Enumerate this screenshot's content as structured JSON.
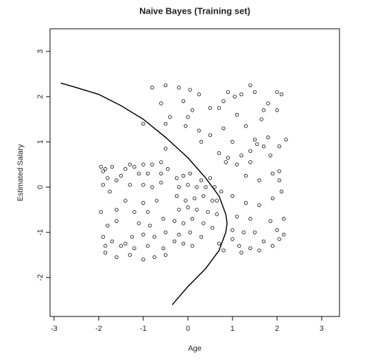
{
  "chart_data": {
    "type": "scatter",
    "title": "Naive Bayes (Training set)",
    "x_label": "Age",
    "y_label": "Estimated Salary",
    "xlim": [
      -3.09,
      3.4
    ],
    "ylim": [
      -2.86,
      3.5
    ],
    "xticks": [
      -3,
      -2,
      -1,
      0,
      1,
      2,
      3
    ],
    "yticks": [
      -2,
      -1,
      0,
      1,
      2,
      3
    ],
    "color": "#000000",
    "points": {
      "x": [
        -0.8,
        -0.5,
        -0.2,
        0.05,
        0.25,
        0.9,
        1.05,
        1.4,
        1.5,
        1.2,
        2.0,
        2.1,
        0.8,
        1.8,
        0.5,
        0.7,
        -0.6,
        -0.1,
        0.1,
        1.7,
        2.0,
        1.65,
        1.1,
        0.0,
        -0.4,
        -1.0,
        -0.5,
        0.8,
        1.3,
        -0.05,
        0.25,
        0.5,
        1.8,
        2.2,
        1.5,
        1.55,
        1.0,
        0.3,
        -0.5,
        1.7,
        2.05,
        0.7,
        1.2,
        1.4,
        0.9,
        1.85,
        1.1,
        1.4,
        0.85,
        2.05,
        1.9,
        1.3,
        2.05,
        1.6,
        -1.95,
        -1.85,
        -1.7,
        -1.9,
        -1.4,
        -1.3,
        -1.2,
        -1.0,
        -0.8,
        -0.6,
        -1.9,
        -1.8,
        -1.6,
        -1.5,
        -1.1,
        -0.9,
        -0.6,
        -0.45,
        -1.75,
        -1.3,
        -1.0,
        -0.8,
        -0.6,
        -1.4,
        -1.6,
        -1.95,
        -1.0,
        -0.7,
        -0.9,
        -1.2,
        -1.6,
        -1.8,
        -1.1,
        -0.85,
        -0.55,
        -1.9,
        -1.7,
        -1.25,
        -1.0,
        -0.75,
        -0.5,
        -1.85,
        -1.5,
        -1.2,
        -0.9,
        -0.55,
        -1.85,
        -1.6,
        -1.3,
        -1.0,
        -0.75,
        -0.5,
        -1.4,
        -0.3,
        -0.25,
        -0.1,
        0.05,
        0.3,
        0.5,
        -0.2,
        0.0,
        0.2,
        0.4,
        0.6,
        -0.25,
        -0.05,
        0.15,
        0.35,
        0.55,
        -0.2,
        0.0,
        0.2,
        0.45,
        0.65,
        -0.3,
        -0.1,
        0.1,
        0.35,
        0.55,
        -0.2,
        0.05,
        0.3,
        0.7,
        0.8,
        0.1,
        -0.1,
        0.65,
        0.75,
        1.0,
        1.3,
        1.6,
        1.9,
        2.1,
        1.1,
        1.4,
        1.85,
        2.15,
        1.0,
        1.25,
        1.5,
        2.0,
        2.15,
        1.15,
        1.4,
        1.7,
        1.9,
        2.05,
        1.0,
        1.2,
        1.6
      ],
      "y": [
        2.2,
        2.25,
        2.2,
        2.15,
        2.05,
        2.1,
        2.0,
        2.25,
        2.1,
        2.05,
        2.1,
        2.05,
        1.9,
        1.85,
        1.75,
        1.75,
        1.85,
        1.9,
        1.7,
        1.7,
        1.7,
        1.5,
        1.6,
        1.55,
        1.55,
        1.4,
        1.4,
        1.3,
        1.35,
        1.35,
        1.25,
        1.15,
        1.1,
        1.05,
        1.05,
        0.95,
        1.0,
        1.0,
        0.85,
        0.9,
        0.9,
        0.75,
        0.7,
        0.8,
        0.65,
        0.7,
        0.5,
        0.55,
        0.55,
        0.35,
        0.3,
        0.25,
        0.15,
        0.15,
        0.45,
        0.4,
        0.45,
        0.35,
        0.4,
        0.5,
        0.45,
        0.5,
        0.5,
        0.55,
        0.05,
        0.2,
        0.15,
        0.25,
        0.3,
        0.3,
        0.3,
        0.4,
        -0.1,
        0.05,
        0.05,
        0.0,
        0.1,
        -0.3,
        -0.5,
        -0.55,
        -0.35,
        -0.3,
        -0.55,
        -0.55,
        -0.75,
        -0.85,
        -0.8,
        -0.85,
        -0.7,
        -1.1,
        -1.2,
        -1.1,
        -1.05,
        -1.1,
        -1.0,
        -1.3,
        -1.3,
        -1.35,
        -1.3,
        -1.35,
        -1.45,
        -1.55,
        -1.5,
        -1.6,
        -1.55,
        -1.5,
        -1.25,
        -1.2,
        0.2,
        0.25,
        0.3,
        0.15,
        0.2,
        0.0,
        0.05,
        0.0,
        0.0,
        0.0,
        -0.2,
        -0.3,
        -0.25,
        -0.2,
        -0.3,
        -0.5,
        -0.45,
        -0.5,
        -0.55,
        -0.6,
        -0.75,
        -0.8,
        -0.7,
        -0.8,
        -0.9,
        -1.05,
        -1.0,
        -1.1,
        -1.25,
        -1.4,
        -1.3,
        -1.25,
        -0.3,
        -0.1,
        -0.2,
        -0.35,
        -0.4,
        -0.25,
        -0.1,
        -0.65,
        -0.7,
        -0.75,
        -0.7,
        -0.95,
        -1.0,
        -1.0,
        -0.95,
        -1.05,
        -1.3,
        -1.35,
        -1.2,
        -1.3,
        -1.15,
        -1.15,
        -1.45,
        -1.4
      ]
    },
    "boundary": {
      "x": [
        -2.85,
        -2.5,
        -2.0,
        -1.5,
        -1.0,
        -0.5,
        0.0,
        0.4,
        0.7,
        0.85,
        0.88,
        0.85,
        0.7,
        0.4,
        0.0,
        -0.35
      ],
      "y": [
        2.3,
        2.2,
        2.05,
        1.8,
        1.5,
        1.1,
        0.65,
        0.2,
        -0.2,
        -0.6,
        -0.8,
        -1.0,
        -1.4,
        -1.8,
        -2.2,
        -2.6
      ]
    }
  }
}
